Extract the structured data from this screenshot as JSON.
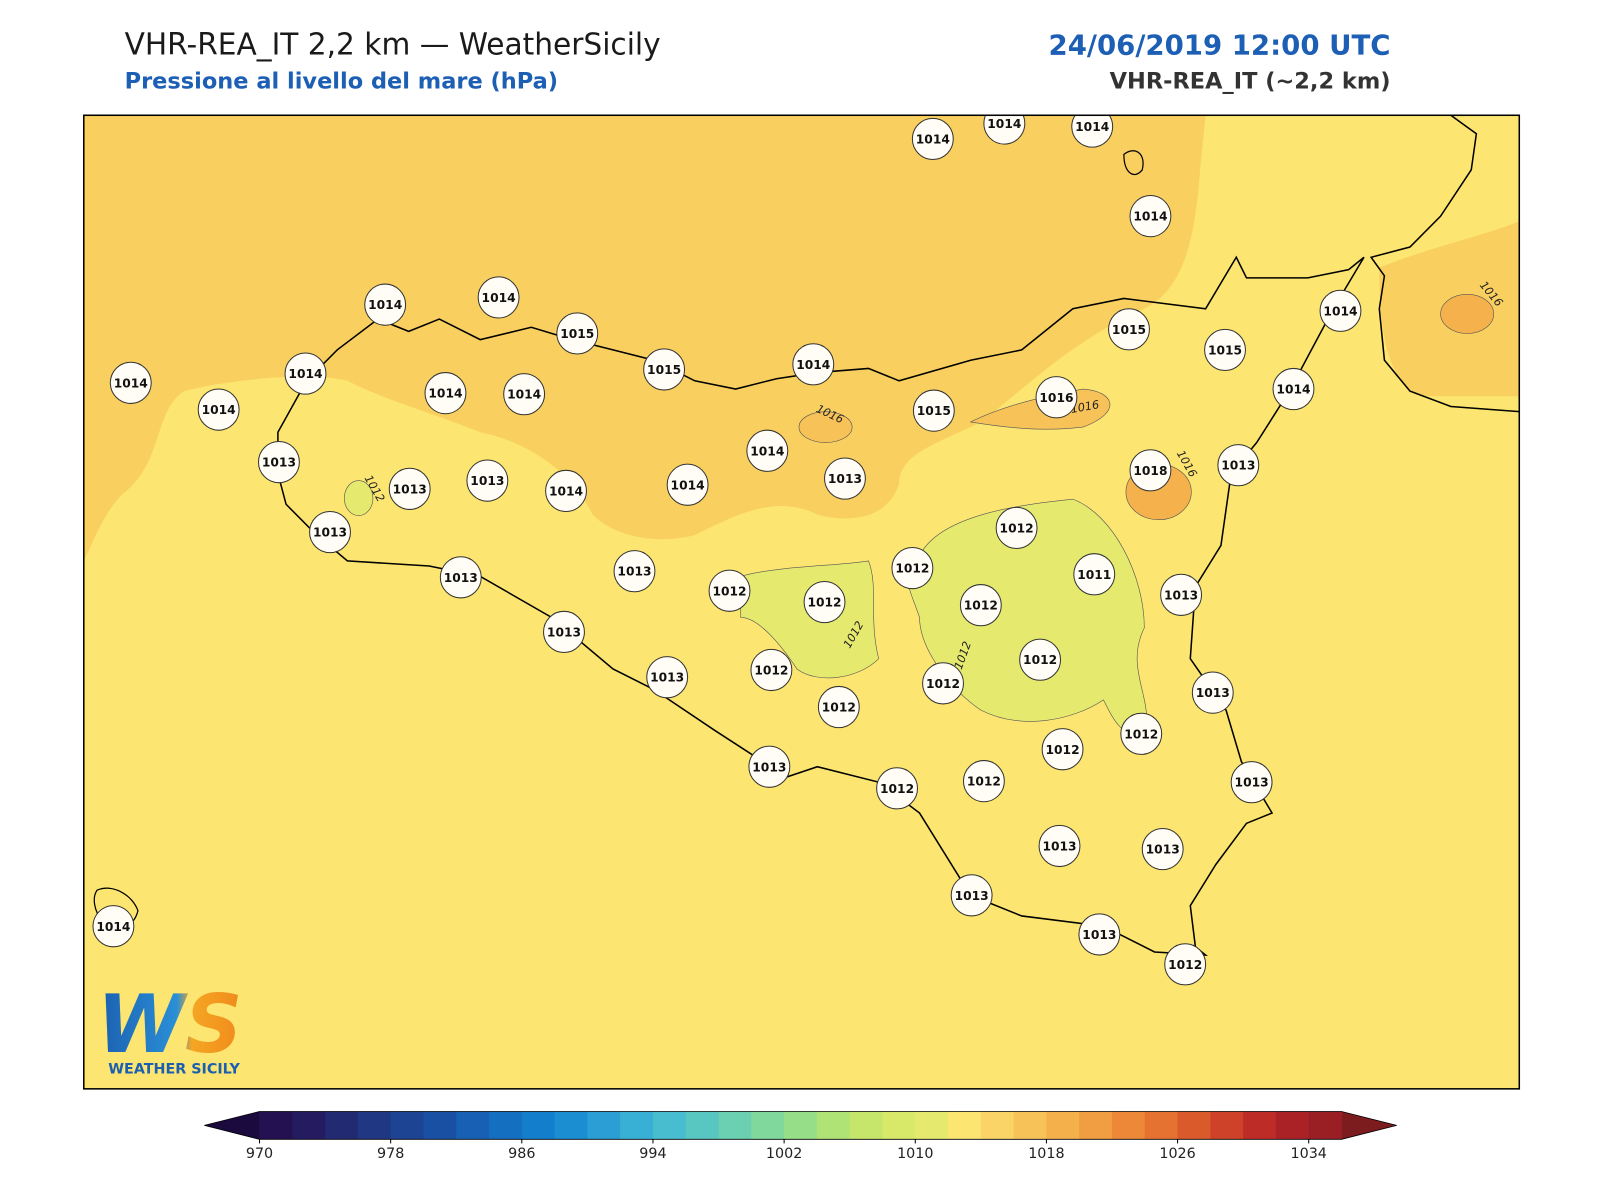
{
  "header": {
    "title": "VHR-REA_IT 2,2 km — WeatherSicily",
    "subtitle": "Pressione al livello del mare (hPa)",
    "datetime": "24/06/2019 12:00 UTC",
    "model": "VHR-REA_IT (~2,2 km)"
  },
  "map": {
    "stations": [
      1014,
      1014,
      1014,
      1014,
      1014,
      1014,
      1015,
      1015,
      1014,
      1015,
      1014,
      1014,
      1015,
      1014,
      1014,
      1014,
      1014,
      1015,
      1016,
      1014,
      1013,
      1014,
      1013,
      1013,
      1014,
      1014,
      1013,
      1018,
      1013,
      1013,
      1012,
      1012,
      1011,
      1013,
      1013,
      1012,
      1012,
      1012,
      1013,
      1013,
      1012,
      1013,
      1012,
      1012,
      1013,
      1012,
      1012,
      1012,
      1013,
      1012,
      1012,
      1013,
      1013,
      1013,
      1013,
      1013,
      1012,
      1014
    ],
    "contour_labels": [
      1016,
      1016,
      1012,
      1016,
      1016,
      1012,
      1012
    ]
  },
  "logo": {
    "mark": "WS",
    "text": "WEATHER SICILY"
  },
  "colorbar": {
    "xlim": [
      970,
      1036
    ],
    "xticks": [
      970,
      978,
      986,
      994,
      1002,
      1010,
      1018,
      1026,
      1034
    ],
    "colors": [
      "#231151",
      "#241b60",
      "#222a72",
      "#203783",
      "#1d4393",
      "#1a50a3",
      "#1760b3",
      "#146fc1",
      "#137ecb",
      "#1b8ed2",
      "#2a9ed5",
      "#38afd5",
      "#48bdcf",
      "#58c7c2",
      "#6bd0b1",
      "#80d89d",
      "#97de88",
      "#afe375",
      "#c6e66b",
      "#d8e96a",
      "#e5ea6e",
      "#fce570",
      "#fad466",
      "#f7c258",
      "#f4b04b",
      "#f19d41",
      "#ec8838",
      "#e57230",
      "#da5a2c",
      "#cd4228",
      "#bd2c27",
      "#ab2226",
      "#9a1f24"
    ],
    "extend_colors": [
      "#1a0a3d",
      "#7d1c1e"
    ]
  }
}
